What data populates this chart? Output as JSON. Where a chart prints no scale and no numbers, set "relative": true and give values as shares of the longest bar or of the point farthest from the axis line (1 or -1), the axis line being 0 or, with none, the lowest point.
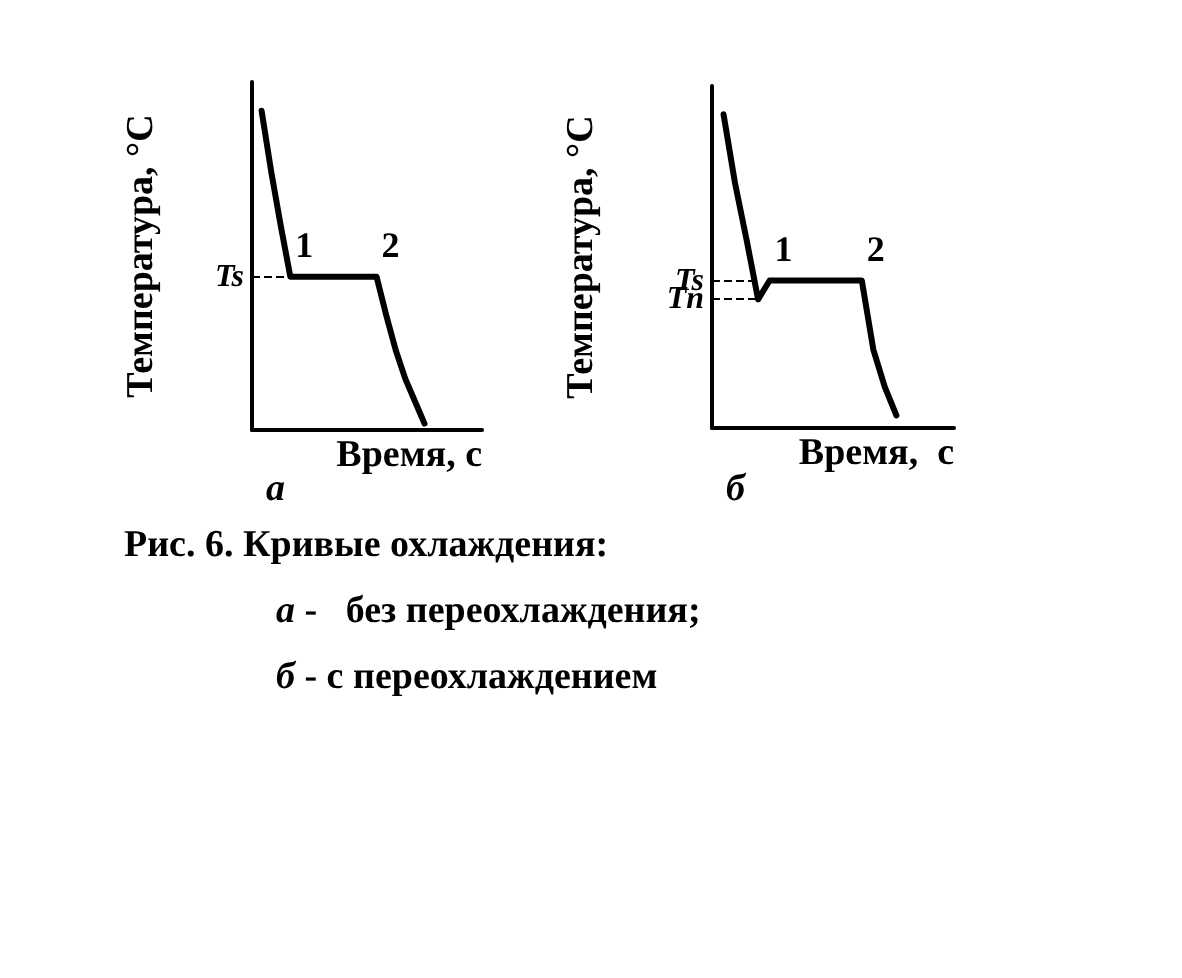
{
  "chart_data": [
    {
      "type": "line",
      "relative": true,
      "xlabel": "Время, с",
      "ylabel": "Температура, °C",
      "marker": "none",
      "categories": [
        null,
        null,
        null,
        null,
        null,
        null,
        null,
        null,
        null,
        null,
        null,
        null,
        null,
        null,
        null,
        null,
        null,
        null,
        null,
        null,
        null,
        null,
        null,
        null,
        null
      ],
      "series": [
        {
          "color": "#000000",
          "values": [
            null,
            1,
            0.81,
            0.64,
            0.48,
            0.48,
            0.48,
            0.48,
            0.48,
            0.48,
            0.48,
            0.48,
            0.48,
            0.48,
            0.36,
            0.25,
            0.16,
            0.09,
            0.02,
            null,
            null,
            null,
            null,
            null,
            null
          ]
        }
      ],
      "ref_lines": [
        {
          "axis": "y",
          "value": 0.48,
          "label": "Ts",
          "line_style": "dashed"
        }
      ],
      "annotations": [
        "а",
        {
          "text": "1",
          "y": 0.48
        },
        "2",
        "Рис. 6. Кривые охлаждения:",
        "а -   без переохлаждения;",
        "б - с переохлаждением"
      ]
    },
    {
      "type": "line",
      "relative": true,
      "xlabel": "Время,  с",
      "ylabel": "Температура, °C",
      "marker": "none",
      "categories": [
        null,
        null,
        null,
        null,
        null,
        null,
        null,
        null,
        null,
        null,
        null,
        null,
        null,
        null,
        null,
        null,
        null,
        null,
        null,
        null,
        null,
        null
      ],
      "series": [
        {
          "color": "#000000",
          "values": [
            null,
            1,
            0.78,
            0.6,
            0.41,
            0.47,
            0.47,
            0.47,
            0.47,
            0.47,
            0.47,
            0.47,
            0.47,
            0.47,
            0.25,
            0.13,
            0.04,
            null,
            null,
            null,
            null,
            null
          ]
        }
      ],
      "ref_lines": [
        {
          "axis": "y",
          "value": 0.47,
          "label": "Ts",
          "line_style": "dashed"
        },
        {
          "axis": "y",
          "value": 0.41,
          "label": "Tn",
          "line_style": "dashed"
        }
      ],
      "annotations": [
        "б",
        {
          "text": "1",
          "y": 0.47
        },
        "2"
      ]
    }
  ]
}
